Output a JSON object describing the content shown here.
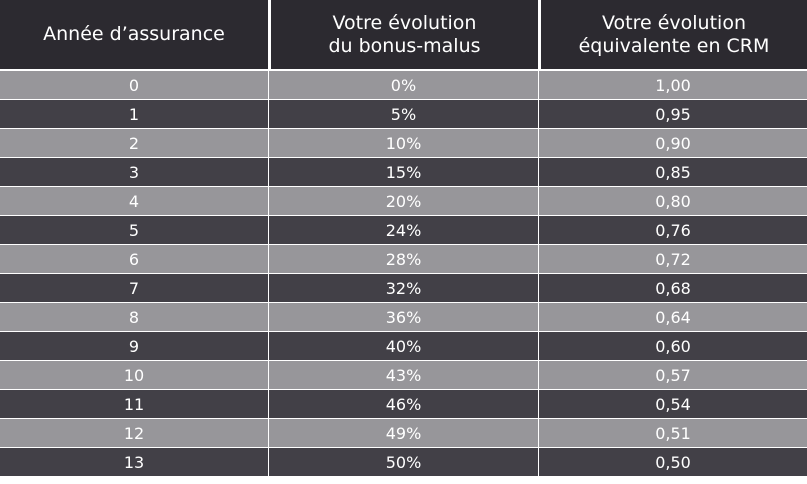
{
  "table": {
    "headers": [
      "Année d’assurance",
      "Votre évolution\ndu bonus-malus",
      "Votre évolution\néquivalente en CRM"
    ],
    "rows": [
      [
        "0",
        "0%",
        "1,00"
      ],
      [
        "1",
        "5%",
        "0,95"
      ],
      [
        "2",
        "10%",
        "0,90"
      ],
      [
        "3",
        "15%",
        "0,85"
      ],
      [
        "4",
        "20%",
        "0,80"
      ],
      [
        "5",
        "24%",
        "0,76"
      ],
      [
        "6",
        "28%",
        "0,72"
      ],
      [
        "7",
        "32%",
        "0,68"
      ],
      [
        "8",
        "36%",
        "0,64"
      ],
      [
        "9",
        "40%",
        "0,60"
      ],
      [
        "10",
        "43%",
        "0,57"
      ],
      [
        "11",
        "46%",
        "0,54"
      ],
      [
        "12",
        "49%",
        "0,51"
      ],
      [
        "13",
        "50%",
        "0,50"
      ]
    ]
  },
  "colors": {
    "header_bg": "#2c2a30",
    "row_light": "#97969a",
    "row_dark": "#424047",
    "text": "#ffffff"
  }
}
